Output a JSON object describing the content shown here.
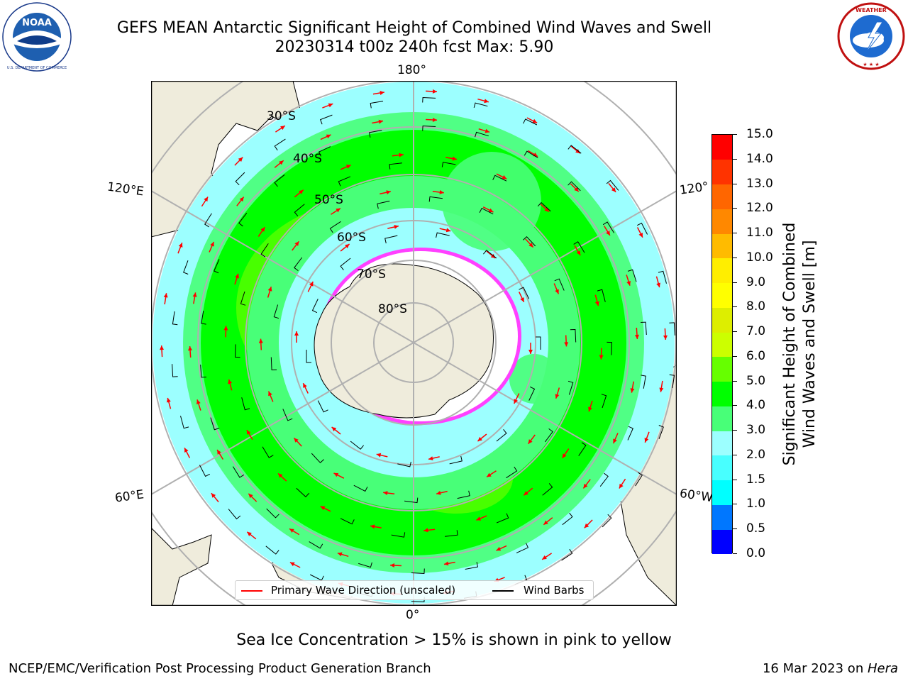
{
  "title": {
    "line1": "GEFS MEAN Antarctic Significant Height of Combined Wind Waves and Swell",
    "line2": "20230314 t00z 240h fcst   Max: 5.90"
  },
  "logos": {
    "left": {
      "name": "NOAA",
      "ring_text": "NATIONAL OCEANIC AND ATMOSPHERIC ADMINISTRATION",
      "bottom_text": "U.S. DEPARTMENT OF COMMERCE"
    },
    "right": {
      "name": "NATIONAL WEATHER SERVICE"
    }
  },
  "map": {
    "projection": "South Polar Stereographic",
    "longitude_labels": {
      "top": "180°",
      "bottom": "0°",
      "upper_left": "120°E",
      "lower_left": "60°E",
      "upper_right": "120°",
      "lower_right": "60°W"
    },
    "latitude_labels": [
      "30°S",
      "40°S",
      "50°S",
      "60°S",
      "70°S",
      "80°S"
    ],
    "max_value": 5.9,
    "colors": {
      "land": "#efecdc",
      "sea_ice": "#ff40ff",
      "grid": "#b0b0b0",
      "arrow": "#ff0000",
      "barb": "#000000"
    }
  },
  "legend": {
    "items": [
      {
        "label": "Primary Wave Direction (unscaled)",
        "color": "#ff0000"
      },
      {
        "label": "Wind Barbs",
        "color": "#000000"
      }
    ]
  },
  "colorbar": {
    "label_line1": "Significant Height of Combined",
    "label_line2": "Wind Waves and Swell [m]",
    "ticks": [
      "0.0",
      "0.5",
      "1.0",
      "1.5",
      "2.0",
      "3.0",
      "4.0",
      "5.0",
      "6.0",
      "7.0",
      "8.0",
      "9.0",
      "10.0",
      "11.0",
      "12.0",
      "13.0",
      "14.0",
      "15.0"
    ],
    "colors": [
      "#0000ff",
      "#0077ff",
      "#00ffff",
      "#48ffff",
      "#9cffff",
      "#48ff78",
      "#00ff00",
      "#66ff00",
      "#ccff00",
      "#ddee00",
      "#ffff00",
      "#ffee00",
      "#ffbb00",
      "#ff8800",
      "#ff6600",
      "#ff3300",
      "#ff0000"
    ]
  },
  "footer": {
    "note": "Sea Ice Concentration > 15% is shown in pink to yellow",
    "credit": "NCEP/EMC/Verification Post Processing Product Generation Branch",
    "date_prefix": "16 Mar 2023 on ",
    "date_host": "Hera"
  }
}
